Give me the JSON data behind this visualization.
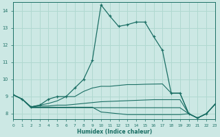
{
  "title": "",
  "xlabel": "Humidex (Indice chaleur)",
  "ylabel": "",
  "bg_color": "#cce8e4",
  "grid_color": "#b0d8d0",
  "line_color": "#1a6e64",
  "x_min": 0,
  "x_max": 23,
  "y_min": 7.7,
  "y_max": 14.5,
  "yticks": [
    8,
    9,
    10,
    11,
    12,
    13,
    14
  ],
  "xticks": [
    0,
    1,
    2,
    3,
    4,
    5,
    6,
    7,
    8,
    9,
    10,
    11,
    12,
    13,
    14,
    15,
    16,
    17,
    18,
    19,
    20,
    21,
    22,
    23
  ],
  "main_series": {
    "x": [
      0,
      1,
      2,
      3,
      4,
      5,
      6,
      7,
      8,
      9,
      10,
      11,
      12,
      13,
      14,
      15,
      16,
      17,
      18,
      19,
      20,
      21,
      22,
      23
    ],
    "y": [
      9.1,
      8.85,
      8.4,
      8.5,
      8.85,
      9.0,
      9.0,
      9.5,
      10.0,
      11.1,
      14.35,
      13.7,
      13.1,
      13.2,
      13.35,
      13.35,
      12.5,
      11.7,
      9.2,
      9.2,
      8.0,
      7.75,
      8.0,
      8.55
    ]
  },
  "series2": {
    "x": [
      0,
      1,
      2,
      3,
      4,
      5,
      6,
      7,
      8,
      9,
      10,
      11,
      12,
      13,
      14,
      15,
      16,
      17,
      18,
      19,
      20,
      21,
      22,
      23
    ],
    "y": [
      9.1,
      8.85,
      8.4,
      8.5,
      8.6,
      8.75,
      9.0,
      9.0,
      9.3,
      9.5,
      9.6,
      9.6,
      9.65,
      9.7,
      9.7,
      9.72,
      9.73,
      9.74,
      9.2,
      9.2,
      8.0,
      7.75,
      8.0,
      8.55
    ]
  },
  "series3": {
    "x": [
      0,
      1,
      2,
      3,
      4,
      5,
      6,
      7,
      8,
      9,
      10,
      11,
      12,
      13,
      14,
      15,
      16,
      17,
      18,
      19,
      20,
      21,
      22,
      23
    ],
    "y": [
      9.1,
      8.85,
      8.4,
      8.45,
      8.45,
      8.5,
      8.5,
      8.55,
      8.6,
      8.65,
      8.7,
      8.72,
      8.74,
      8.76,
      8.78,
      8.8,
      8.82,
      8.82,
      8.82,
      8.82,
      8.0,
      7.75,
      8.0,
      8.55
    ]
  },
  "series4": {
    "x": [
      0,
      1,
      2,
      3,
      4,
      5,
      6,
      7,
      8,
      9,
      10,
      11,
      12,
      13,
      14,
      15,
      16,
      17,
      18,
      19,
      20,
      21,
      22,
      23
    ],
    "y": [
      9.1,
      8.85,
      8.38,
      8.38,
      8.38,
      8.38,
      8.38,
      8.38,
      8.38,
      8.38,
      8.1,
      8.05,
      8.0,
      7.95,
      7.95,
      7.95,
      7.95,
      7.95,
      7.95,
      7.95,
      8.0,
      7.75,
      8.0,
      8.55
    ]
  },
  "series5": {
    "x": [
      0,
      1,
      2,
      3,
      4,
      5,
      6,
      7,
      8,
      9,
      10,
      11,
      12,
      13,
      14,
      15,
      16,
      17,
      18,
      19,
      20,
      21,
      22,
      23
    ],
    "y": [
      9.1,
      8.85,
      8.35,
      8.35,
      8.35,
      8.35,
      8.35,
      8.35,
      8.35,
      8.35,
      8.35,
      8.35,
      8.35,
      8.35,
      8.35,
      8.35,
      8.35,
      8.35,
      8.35,
      8.35,
      8.0,
      7.75,
      8.0,
      8.55
    ]
  }
}
